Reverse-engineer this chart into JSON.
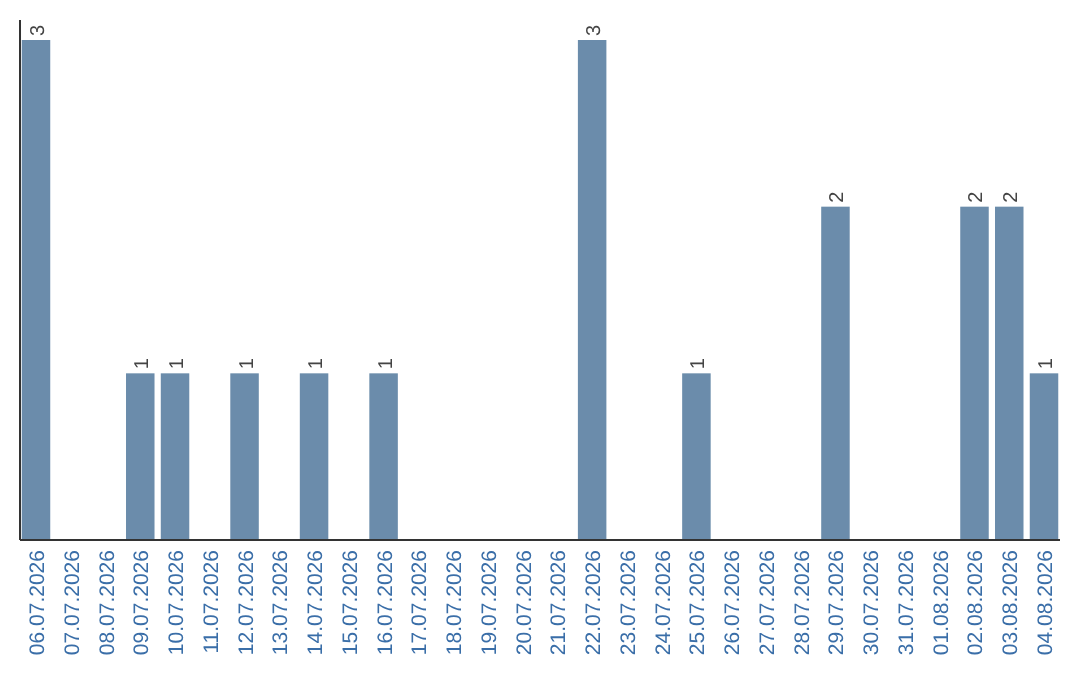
{
  "chart_data": {
    "type": "bar",
    "color": "#6b8cab",
    "categories": [
      "06.07.2026",
      "07.07.2026",
      "08.07.2026",
      "09.07.2026",
      "10.07.2026",
      "11.07.2026",
      "12.07.2026",
      "13.07.2026",
      "14.07.2026",
      "15.07.2026",
      "16.07.2026",
      "17.07.2026",
      "18.07.2026",
      "19.07.2026",
      "20.07.2026",
      "21.07.2026",
      "22.07.2026",
      "23.07.2026",
      "24.07.2026",
      "25.07.2026",
      "26.07.2026",
      "27.07.2026",
      "28.07.2026",
      "29.07.2026",
      "30.07.2026",
      "31.07.2026",
      "01.08.2026",
      "02.08.2026",
      "03.08.2026",
      "04.08.2026"
    ],
    "values": [
      3,
      0,
      0,
      1,
      1,
      0,
      1,
      0,
      1,
      0,
      1,
      0,
      0,
      0,
      0,
      0,
      3,
      0,
      0,
      1,
      0,
      0,
      0,
      2,
      0,
      0,
      0,
      2,
      2,
      1
    ],
    "value_labels": [
      "3",
      null,
      null,
      "1",
      "1",
      null,
      "1",
      null,
      "1",
      null,
      "1",
      null,
      null,
      null,
      null,
      null,
      "3",
      null,
      null,
      "1",
      null,
      null,
      null,
      "2",
      null,
      null,
      null,
      "2",
      "2",
      "1"
    ],
    "tick_labels": "x"
  }
}
